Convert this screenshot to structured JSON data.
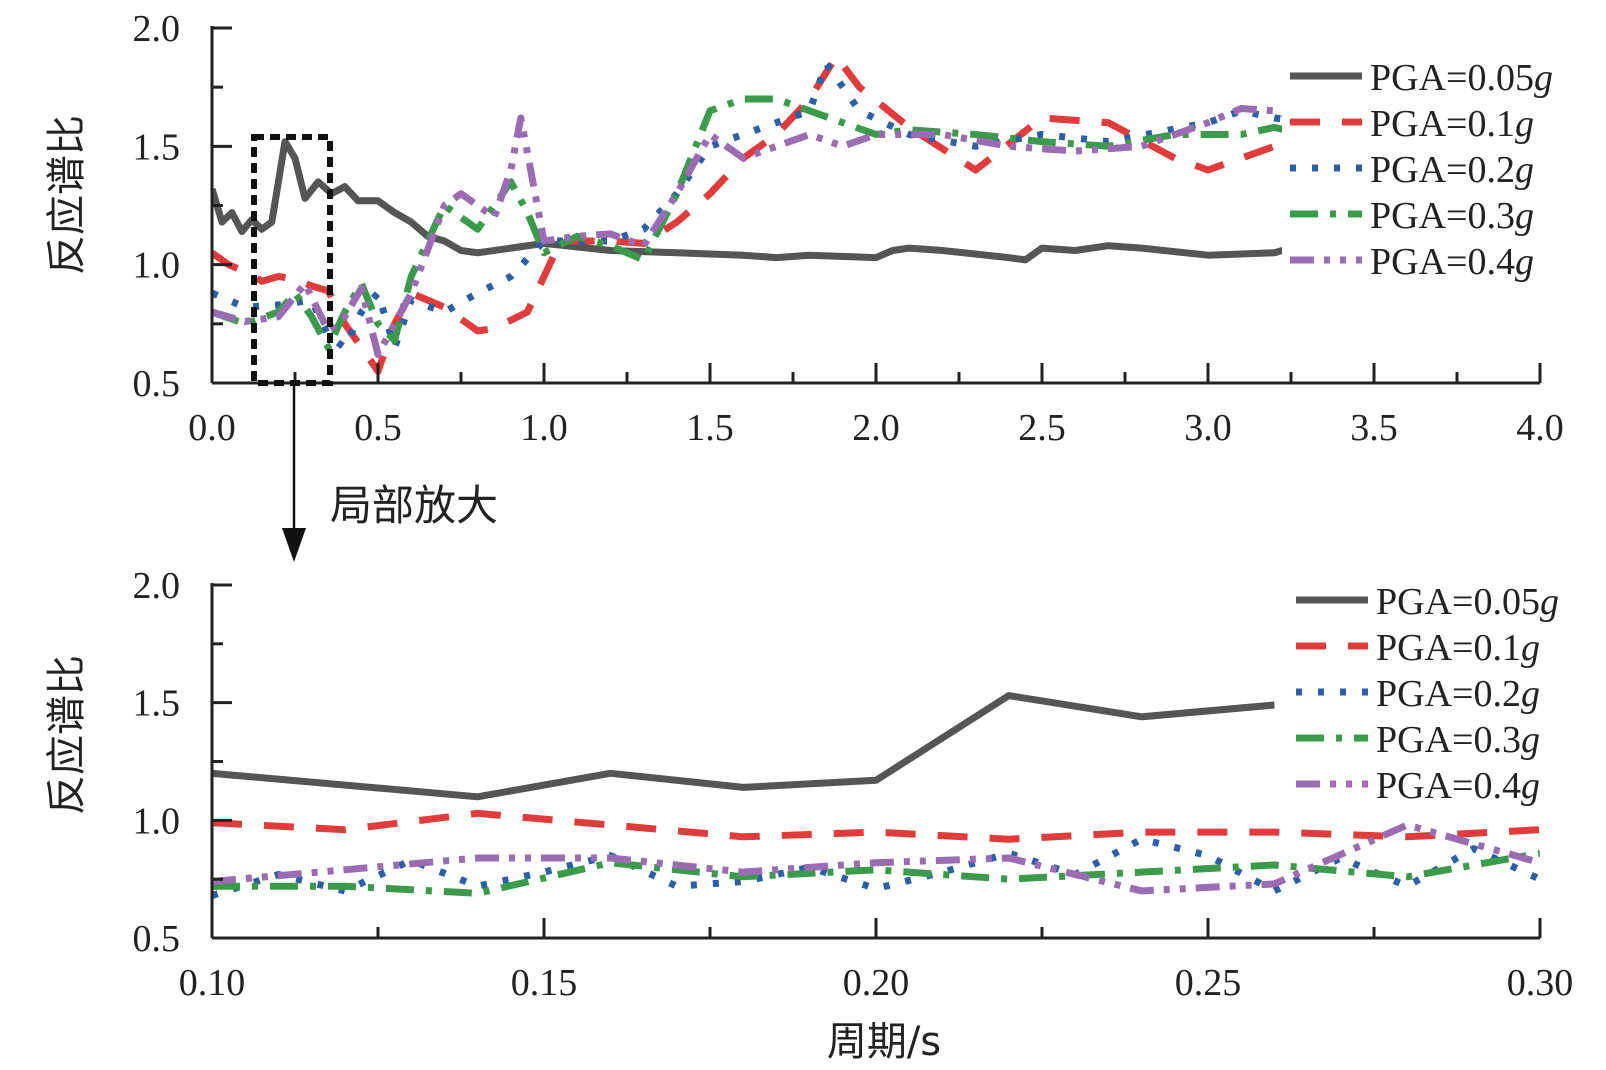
{
  "chart_data": [
    {
      "type": "line",
      "panel": "top",
      "title": "",
      "xlabel": "",
      "ylabel": "反应谱比",
      "xlim": [
        0,
        4
      ],
      "ylim": [
        0.5,
        2.0
      ],
      "xticks": [
        0,
        0.5,
        1.0,
        1.5,
        2.0,
        2.5,
        3.0,
        3.5,
        4.0
      ],
      "xtick_labels": [
        "0.0",
        "0.5",
        "1.0",
        "1.5",
        "2.0",
        "2.5",
        "3.0",
        "3.5",
        "4.0"
      ],
      "yticks": [
        0.5,
        1.0,
        1.5,
        2.0
      ],
      "ytick_labels": [
        "0.5",
        "1.0",
        "1.5",
        "2.0"
      ],
      "legend_position": "top-right",
      "series": [
        {
          "name": "PGA=0.05",
          "unit": "g",
          "color": "#555555",
          "dash": "solid",
          "x": [
            0,
            0.03,
            0.06,
            0.09,
            0.12,
            0.15,
            0.18,
            0.22,
            0.25,
            0.28,
            0.32,
            0.36,
            0.4,
            0.44,
            0.5,
            0.55,
            0.6,
            0.65,
            0.7,
            0.75,
            0.8,
            0.9,
            1.0,
            1.2,
            1.4,
            1.6,
            1.7,
            1.8,
            2.0,
            2.05,
            2.1,
            2.2,
            2.4,
            2.45,
            2.5,
            2.6,
            2.7,
            2.8,
            3.0,
            3.2,
            3.3
          ],
          "y": [
            1.32,
            1.18,
            1.22,
            1.14,
            1.19,
            1.15,
            1.18,
            1.52,
            1.45,
            1.28,
            1.35,
            1.3,
            1.33,
            1.27,
            1.27,
            1.22,
            1.18,
            1.12,
            1.1,
            1.06,
            1.05,
            1.07,
            1.09,
            1.06,
            1.05,
            1.04,
            1.03,
            1.04,
            1.03,
            1.06,
            1.07,
            1.06,
            1.03,
            1.02,
            1.07,
            1.06,
            1.08,
            1.07,
            1.04,
            1.05,
            1.09
          ]
        },
        {
          "name": "PGA=0.1",
          "unit": "g",
          "color": "#e23b3b",
          "dash": "dash",
          "x": [
            0,
            0.05,
            0.1,
            0.15,
            0.2,
            0.25,
            0.3,
            0.35,
            0.4,
            0.45,
            0.5,
            0.55,
            0.6,
            0.7,
            0.8,
            0.85,
            0.95,
            1.05,
            1.2,
            1.3,
            1.4,
            1.5,
            1.6,
            1.7,
            1.8,
            1.88,
            1.95,
            2.1,
            2.3,
            2.5,
            2.7,
            2.9,
            3.0,
            3.1,
            3.2,
            3.3
          ],
          "y": [
            1.05,
            1.0,
            0.97,
            0.93,
            0.95,
            0.94,
            0.91,
            0.89,
            0.75,
            0.65,
            0.55,
            0.75,
            0.88,
            0.82,
            0.72,
            0.73,
            0.8,
            1.1,
            1.1,
            1.09,
            1.18,
            1.3,
            1.45,
            1.55,
            1.7,
            1.88,
            1.75,
            1.58,
            1.4,
            1.62,
            1.6,
            1.45,
            1.4,
            1.45,
            1.5,
            1.48
          ]
        },
        {
          "name": "PGA=0.2",
          "unit": "g",
          "color": "#2b5fa8",
          "dash": "dot",
          "x": [
            0,
            0.1,
            0.2,
            0.3,
            0.35,
            0.4,
            0.45,
            0.5,
            0.55,
            0.6,
            0.7,
            0.8,
            0.9,
            1.0,
            1.2,
            1.3,
            1.4,
            1.5,
            1.6,
            1.7,
            1.8,
            1.85,
            1.95,
            2.1,
            2.3,
            2.5,
            2.7,
            3.0,
            3.1,
            3.2,
            3.3
          ],
          "y": [
            0.88,
            0.82,
            0.83,
            0.85,
            0.7,
            0.65,
            0.8,
            0.88,
            0.65,
            0.85,
            0.8,
            0.88,
            0.95,
            1.1,
            1.1,
            1.15,
            1.3,
            1.5,
            1.55,
            1.6,
            1.65,
            1.85,
            1.65,
            1.55,
            1.5,
            1.55,
            1.52,
            1.6,
            1.65,
            1.62,
            1.6
          ]
        },
        {
          "name": "PGA=0.3",
          "unit": "g",
          "color": "#3a9b4a",
          "dash": "dashdot",
          "x": [
            0,
            0.1,
            0.2,
            0.25,
            0.3,
            0.35,
            0.4,
            0.45,
            0.5,
            0.55,
            0.6,
            0.7,
            0.8,
            0.9,
            0.95,
            1.0,
            1.1,
            1.2,
            1.3,
            1.4,
            1.5,
            1.6,
            1.7,
            1.8,
            1.9,
            2.0,
            2.1,
            2.3,
            2.5,
            2.7,
            2.9,
            3.1,
            3.2,
            3.3
          ],
          "y": [
            0.8,
            0.75,
            0.8,
            0.88,
            0.78,
            0.65,
            0.8,
            0.92,
            0.75,
            0.68,
            0.95,
            1.25,
            1.15,
            1.35,
            1.22,
            1.05,
            1.12,
            1.08,
            1.02,
            1.3,
            1.65,
            1.7,
            1.7,
            1.65,
            1.6,
            1.55,
            1.57,
            1.55,
            1.52,
            1.5,
            1.55,
            1.55,
            1.58,
            1.55
          ]
        },
        {
          "name": "PGA=0.4",
          "unit": "g",
          "color": "#9b6bb3",
          "dash": "dashdotdot",
          "x": [
            0,
            0.1,
            0.2,
            0.28,
            0.35,
            0.4,
            0.45,
            0.5,
            0.55,
            0.6,
            0.7,
            0.75,
            0.85,
            0.9,
            0.93,
            1.0,
            1.1,
            1.2,
            1.3,
            1.4,
            1.5,
            1.6,
            1.7,
            1.8,
            1.9,
            2.0,
            2.2,
            2.4,
            2.6,
            2.8,
            3.0,
            3.1,
            3.2,
            3.3
          ],
          "y": [
            0.8,
            0.76,
            0.78,
            0.92,
            0.72,
            0.78,
            0.9,
            0.62,
            0.75,
            0.88,
            1.25,
            1.3,
            1.2,
            1.4,
            1.62,
            1.1,
            1.12,
            1.13,
            1.08,
            1.3,
            1.55,
            1.45,
            1.5,
            1.55,
            1.5,
            1.55,
            1.55,
            1.5,
            1.48,
            1.5,
            1.6,
            1.66,
            1.65,
            1.6
          ]
        }
      ]
    },
    {
      "type": "line",
      "panel": "bottom",
      "title": "",
      "xlabel": "周期/s",
      "ylabel": "反应谱比",
      "xlim": [
        0.1,
        0.3
      ],
      "ylim": [
        0.5,
        2.0
      ],
      "xticks": [
        0.1,
        0.15,
        0.2,
        0.25,
        0.3
      ],
      "xtick_labels": [
        "0.10",
        "0.15",
        "0.20",
        "0.25",
        "0.30"
      ],
      "yticks": [
        0.5,
        1.0,
        1.5,
        2.0
      ],
      "ytick_labels": [
        "0.5",
        "1.0",
        "1.5",
        "2.0"
      ],
      "legend_position": "top-right",
      "series": [
        {
          "name": "PGA=0.05",
          "unit": "g",
          "color": "#555555",
          "dash": "solid",
          "x": [
            0.1,
            0.14,
            0.16,
            0.18,
            0.2,
            0.22,
            0.24,
            0.26
          ],
          "y": [
            1.2,
            1.1,
            1.2,
            1.14,
            1.17,
            1.53,
            1.44,
            1.49
          ]
        },
        {
          "name": "PGA=0.1",
          "unit": "g",
          "color": "#e23b3b",
          "dash": "dash",
          "x": [
            0.1,
            0.12,
            0.14,
            0.16,
            0.18,
            0.2,
            0.22,
            0.24,
            0.26,
            0.28,
            0.3
          ],
          "y": [
            0.99,
            0.96,
            1.03,
            0.98,
            0.93,
            0.95,
            0.92,
            0.95,
            0.95,
            0.93,
            0.96
          ]
        },
        {
          "name": "PGA=0.2",
          "unit": "g",
          "color": "#2b5fa8",
          "dash": "dot",
          "x": [
            0.1,
            0.11,
            0.12,
            0.13,
            0.14,
            0.15,
            0.16,
            0.17,
            0.18,
            0.19,
            0.2,
            0.21,
            0.22,
            0.23,
            0.24,
            0.25,
            0.26,
            0.27,
            0.28,
            0.29,
            0.3
          ],
          "y": [
            0.68,
            0.77,
            0.7,
            0.83,
            0.72,
            0.78,
            0.85,
            0.72,
            0.74,
            0.8,
            0.71,
            0.78,
            0.86,
            0.77,
            0.92,
            0.85,
            0.7,
            0.84,
            0.72,
            0.88,
            0.75
          ]
        },
        {
          "name": "PGA=0.3",
          "unit": "g",
          "color": "#3a9b4a",
          "dash": "dashdot",
          "x": [
            0.1,
            0.12,
            0.14,
            0.16,
            0.18,
            0.2,
            0.22,
            0.24,
            0.26,
            0.28,
            0.3
          ],
          "y": [
            0.72,
            0.72,
            0.69,
            0.82,
            0.76,
            0.79,
            0.75,
            0.78,
            0.81,
            0.76,
            0.86
          ]
        },
        {
          "name": "PGA=0.4",
          "unit": "g",
          "color": "#9b6bb3",
          "dash": "dashdotdot",
          "x": [
            0.1,
            0.12,
            0.14,
            0.16,
            0.18,
            0.2,
            0.22,
            0.24,
            0.26,
            0.28,
            0.3
          ],
          "y": [
            0.74,
            0.79,
            0.84,
            0.84,
            0.78,
            0.82,
            0.84,
            0.7,
            0.73,
            0.98,
            0.82
          ]
        }
      ]
    }
  ],
  "annotation": {
    "label": "局部放大"
  }
}
